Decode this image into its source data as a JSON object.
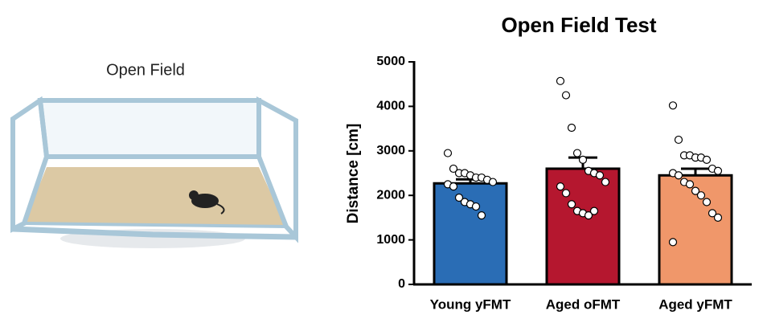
{
  "illustration": {
    "label": "Open Field"
  },
  "chart_data": {
    "type": "bar",
    "title": "Open Field Test",
    "ylabel": "Distance [cm]",
    "categories": [
      "Young yFMT",
      "Aged oFMT",
      "Aged yFMT"
    ],
    "values": [
      2270,
      2600,
      2450
    ],
    "errors": [
      90,
      250,
      150
    ],
    "colors": [
      "#2a6db5",
      "#b5172f",
      "#f0976a"
    ],
    "points": [
      [
        2950,
        2600,
        2500,
        2500,
        2450,
        2400,
        2400,
        2350,
        2300,
        2250,
        2200,
        1950,
        1850,
        1800,
        1750,
        1550
      ],
      [
        4570,
        4250,
        3520,
        2950,
        2800,
        2550,
        2500,
        2450,
        2300,
        2200,
        2050,
        1800,
        1650,
        1600,
        1550,
        1650
      ],
      [
        4020,
        3250,
        2900,
        2900,
        2850,
        2850,
        2800,
        2600,
        2550,
        2500,
        2450,
        2300,
        2250,
        2100,
        2000,
        1850,
        1600,
        1500,
        950
      ]
    ],
    "ylim": [
      0,
      5000
    ],
    "yticks": [
      0,
      1000,
      2000,
      3000,
      4000,
      5000
    ]
  }
}
